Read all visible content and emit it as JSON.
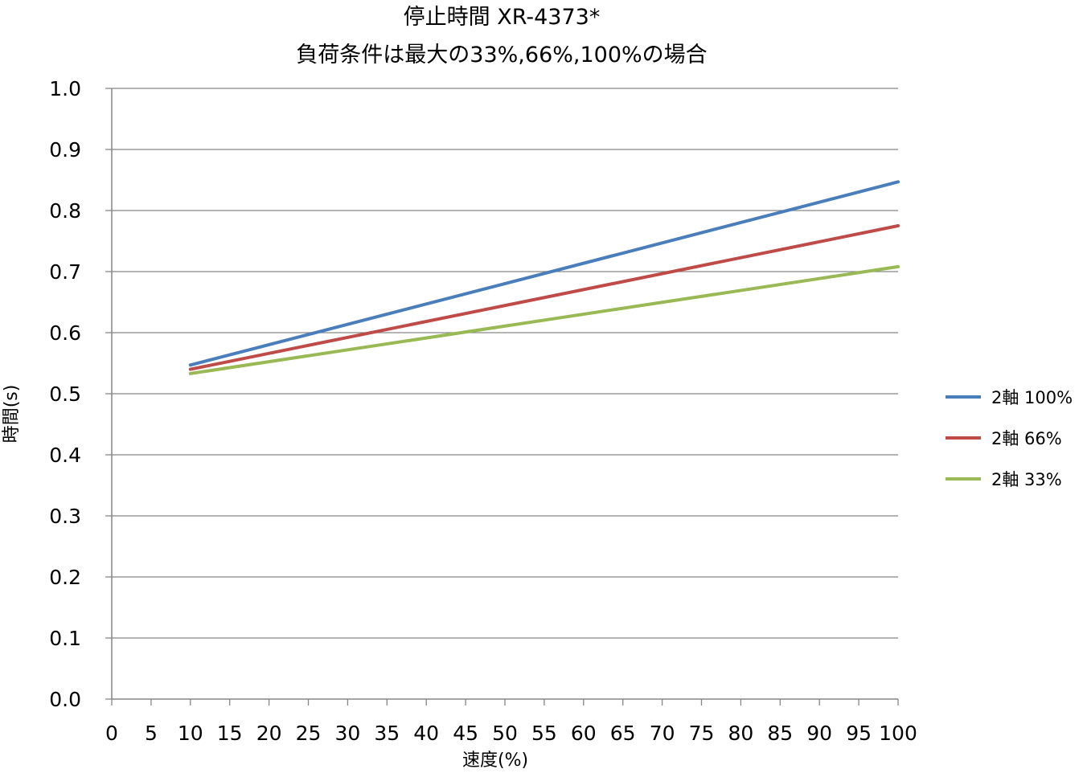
{
  "chart_data": {
    "type": "line",
    "title": [
      "停止時間 XR-4373*",
      "負荷条件は最大の33%,66%,100%の場合"
    ],
    "xlabel": "速度(%)",
    "ylabel": "時間(s)",
    "xlim": [
      0,
      100
    ],
    "ylim": [
      0,
      1.0
    ],
    "x_ticks": [
      0,
      5,
      10,
      15,
      20,
      25,
      30,
      35,
      40,
      45,
      50,
      55,
      60,
      65,
      70,
      75,
      80,
      85,
      90,
      95,
      100
    ],
    "x_tick_labels": [
      "0",
      "5",
      "10",
      "15",
      "20",
      "25",
      "30",
      "35",
      "40",
      "45",
      "50",
      "55",
      "60",
      "65",
      "70",
      "75",
      "80",
      "85",
      "90",
      "95",
      "100"
    ],
    "y_ticks": [
      0,
      0.1,
      0.2,
      0.3,
      0.4,
      0.5,
      0.6,
      0.7,
      0.8,
      0.9,
      1.0
    ],
    "y_tick_labels": [
      "0.0",
      "0.1",
      "0.2",
      "0.3",
      "0.4",
      "0.5",
      "0.6",
      "0.7",
      "0.8",
      "0.9",
      "1.0"
    ],
    "grid": "horizontal",
    "legend_position": "right",
    "series": [
      {
        "name": "2軸 100%",
        "color": "#4a7ebb",
        "x": [
          10,
          100
        ],
        "y": [
          0.547,
          0.847
        ]
      },
      {
        "name": "2軸 66%",
        "color": "#be4b48",
        "x": [
          10,
          100
        ],
        "y": [
          0.54,
          0.775
        ]
      },
      {
        "name": "2軸 33%",
        "color": "#98b954",
        "x": [
          10,
          100
        ],
        "y": [
          0.533,
          0.708
        ]
      }
    ]
  },
  "colors": {
    "gridline": "#868686",
    "axis": "#868686"
  }
}
